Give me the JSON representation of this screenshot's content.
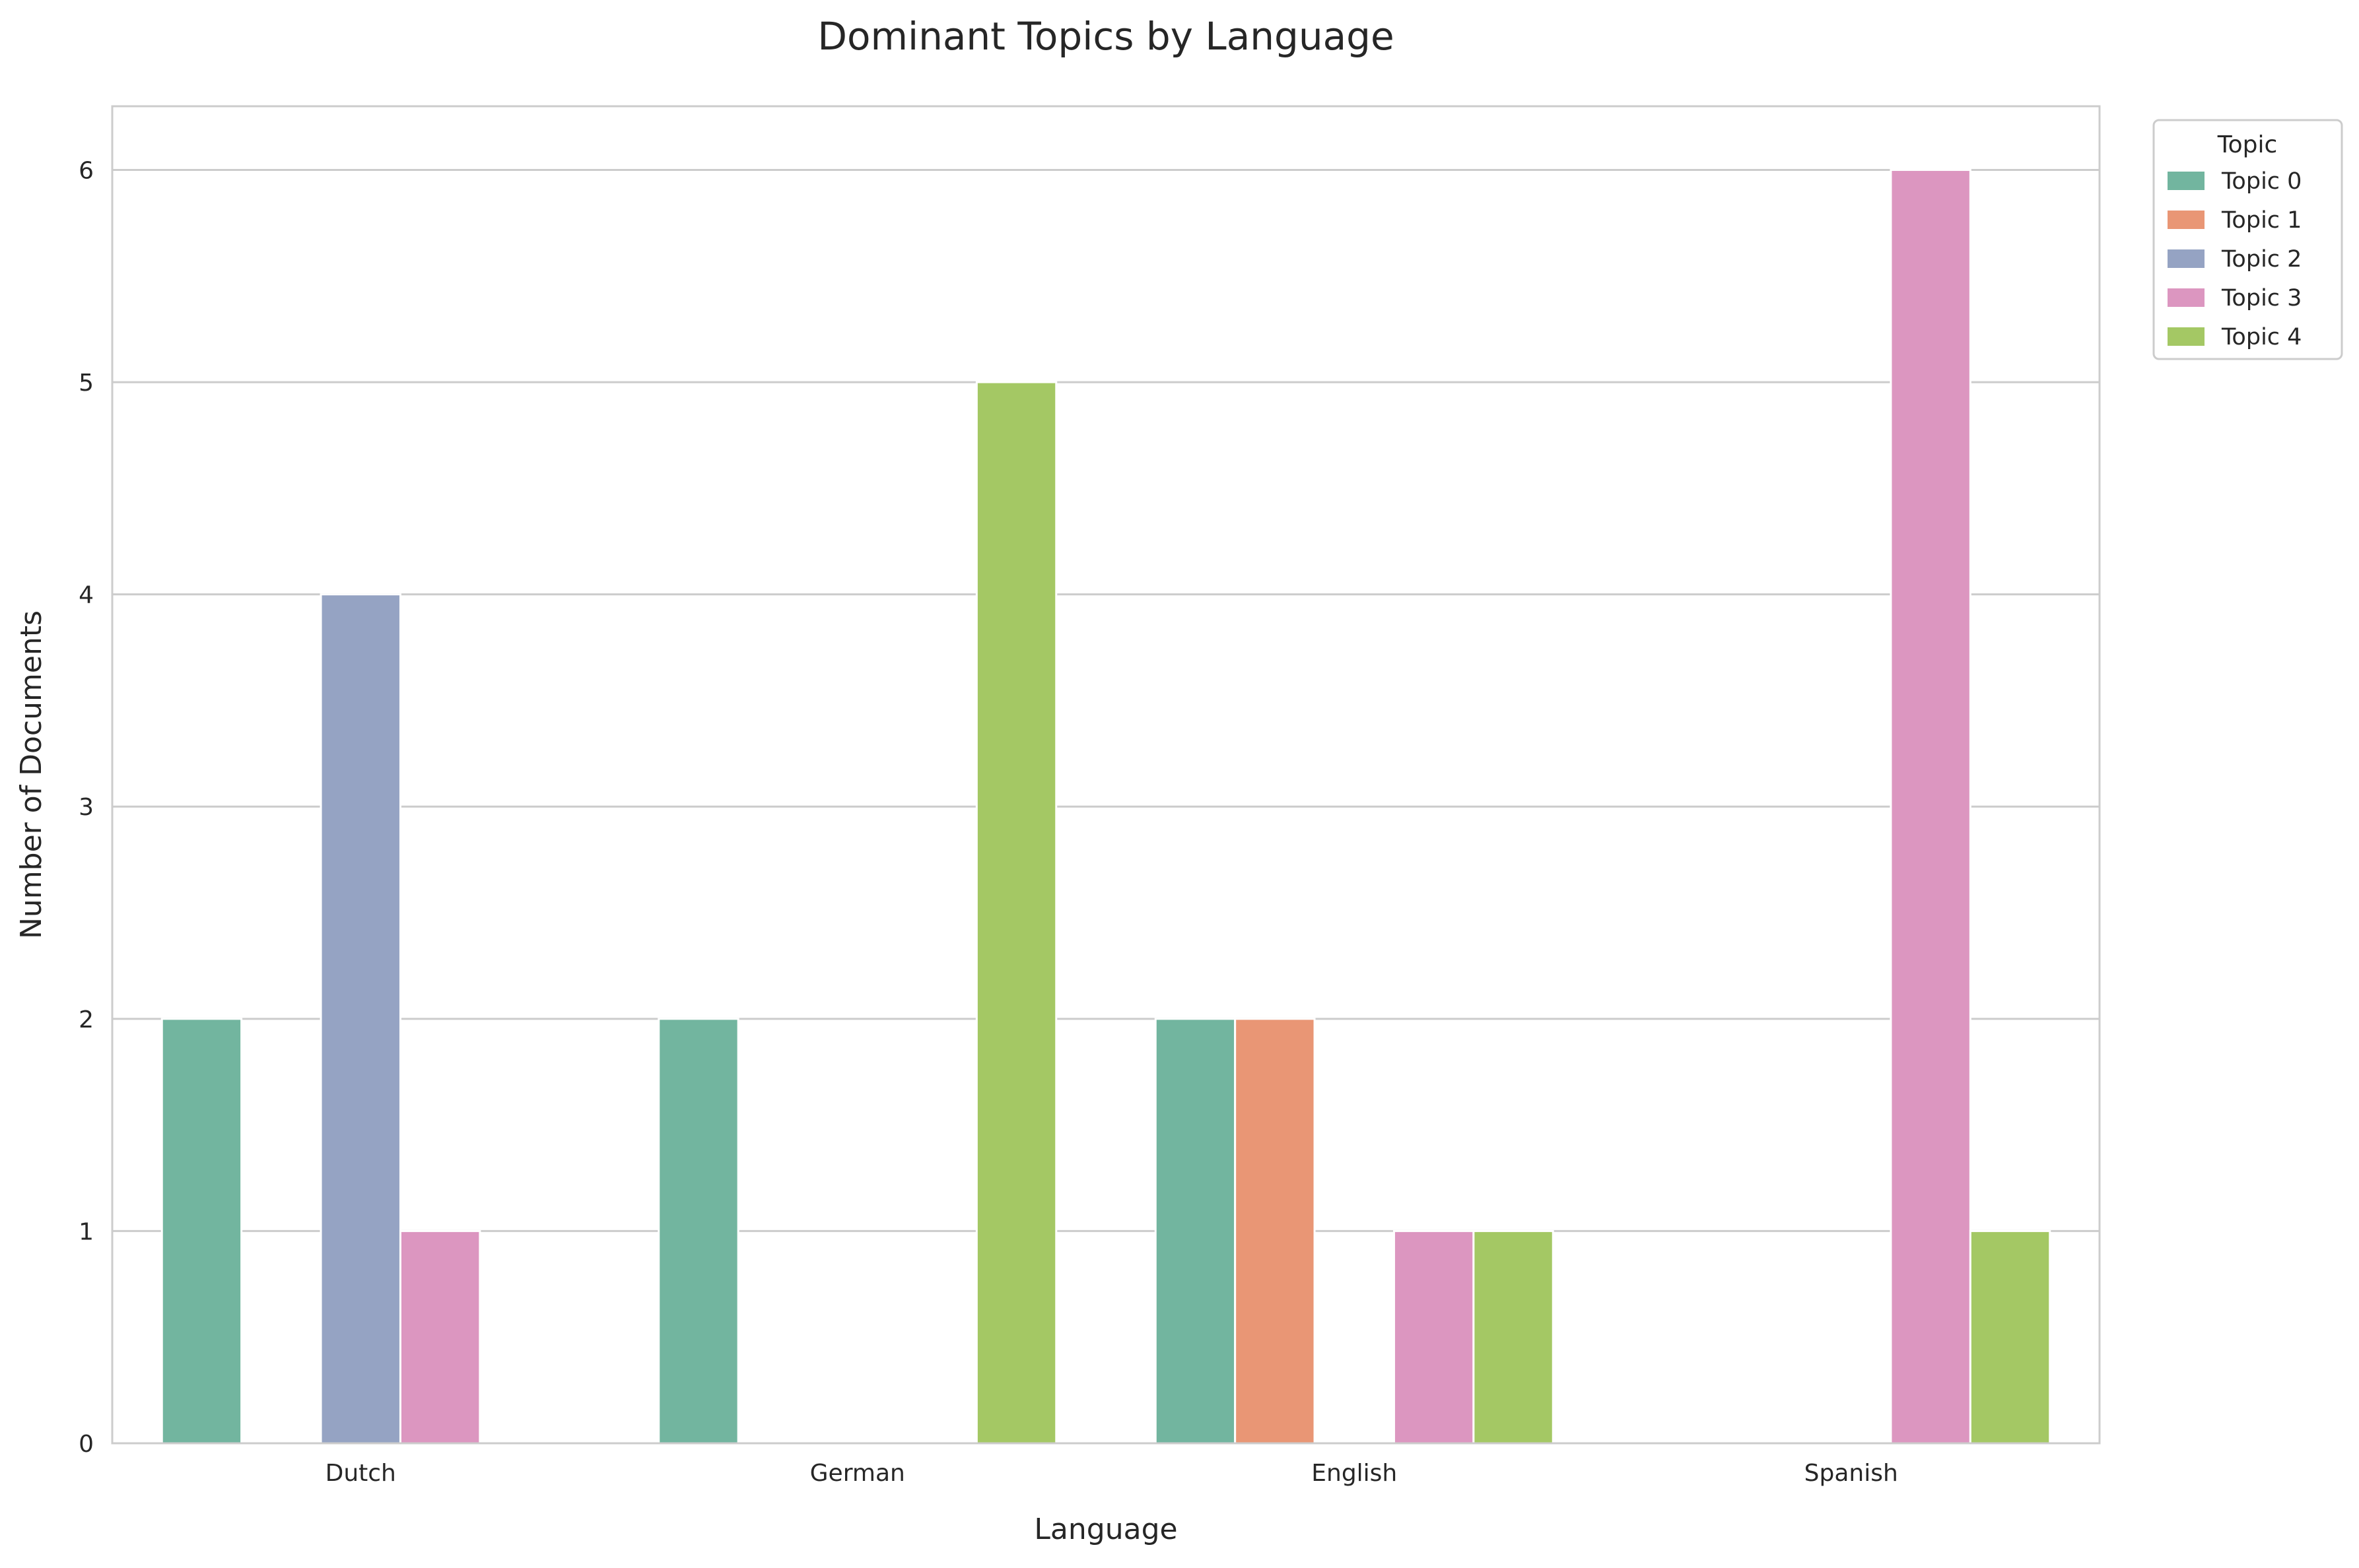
{
  "chart_data": {
    "type": "bar",
    "title": "Dominant Topics by Language",
    "xlabel": "Language",
    "ylabel": "Number of Documents",
    "categories": [
      "Dutch",
      "German",
      "English",
      "Spanish"
    ],
    "ylim": [
      0,
      6.3
    ],
    "yticks": [
      0,
      1,
      2,
      3,
      4,
      5,
      6
    ],
    "grid": true,
    "legend": {
      "title": "Topic",
      "placement": "outside-top-right"
    },
    "series": [
      {
        "name": "Topic 0",
        "color": "#72b59f",
        "values": [
          2,
          2,
          2,
          0
        ]
      },
      {
        "name": "Topic 1",
        "color": "#e99675",
        "values": [
          0,
          0,
          2,
          0
        ]
      },
      {
        "name": "Topic 2",
        "color": "#95a3c3",
        "values": [
          4,
          0,
          0,
          0
        ]
      },
      {
        "name": "Topic 3",
        "color": "#dc96c0",
        "values": [
          1,
          0,
          1,
          6
        ]
      },
      {
        "name": "Topic 4",
        "color": "#a4c864",
        "values": [
          0,
          5,
          1,
          1
        ]
      }
    ]
  }
}
